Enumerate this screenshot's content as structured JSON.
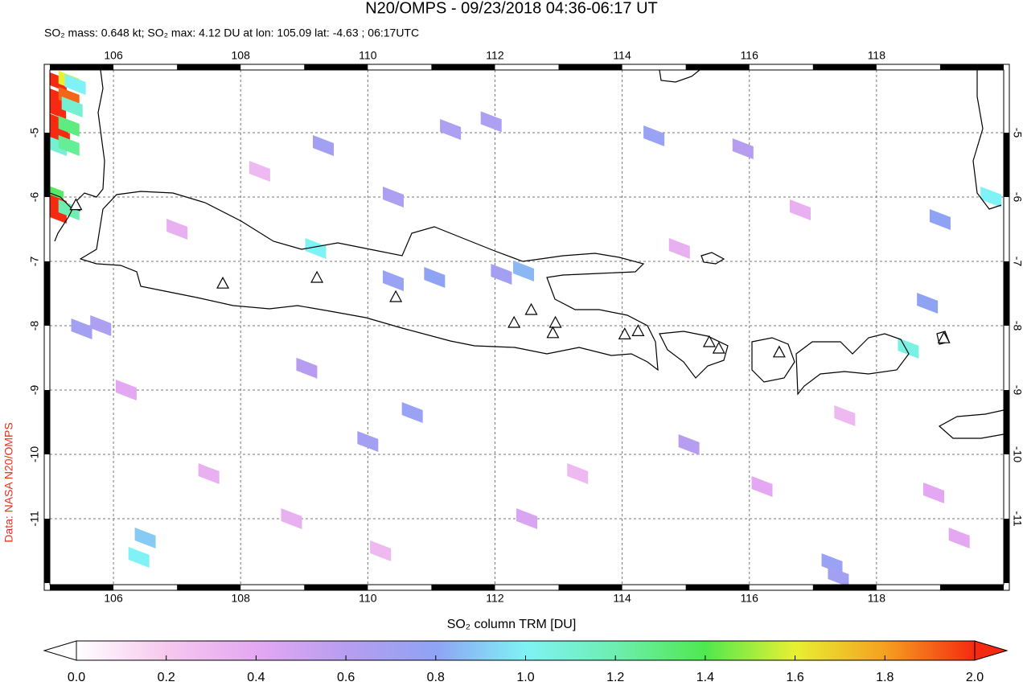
{
  "chart_data": {
    "type": "map",
    "title": "N20/OMPS - 09/23/2018 04:36-06:17 UT",
    "subtitle": "SO₂ mass: 0.648 kt; SO₂ max: 4.12 DU at lon: 105.09 lat: -4.63 ; 06:17UTC",
    "side_note": "Data: NASA N20/OMPS",
    "xlim": [
      105,
      120
    ],
    "ylim": [
      -12.025,
      -4.025
    ],
    "xticks": [
      106,
      108,
      110,
      112,
      114,
      116,
      118
    ],
    "yticks": [
      -5,
      -6,
      -7,
      -8,
      -9,
      -10,
      -11
    ],
    "grid": true,
    "volcanoes": {
      "lon": [
        105.41,
        107.72,
        109.2,
        110.44,
        112.3,
        112.57,
        112.95,
        112.91,
        114.04,
        114.25,
        115.37,
        115.52,
        116.47,
        119.06
      ],
      "lat": [
        -6.12,
        -7.34,
        -7.25,
        -7.55,
        -7.95,
        -7.75,
        -7.95,
        -8.11,
        -8.13,
        -8.08,
        -8.25,
        -8.35,
        -8.41,
        -8.19
      ]
    },
    "pixels": {
      "lon": [
        105.1,
        105.1,
        105.09,
        105.12,
        105.15,
        105.3,
        105.4,
        105.3,
        105.35,
        105.3,
        105.1,
        105.3,
        105.05,
        105.1,
        105.1,
        105.3,
        105.5,
        105.8,
        109.18,
        110.4,
        111.05,
        112.45,
        112.1,
        114.5,
        111.94,
        110.4,
        109.3,
        110.7,
        110.0,
        106.5,
        106.4,
        118.5,
        119.0,
        119.8,
        118.8,
        115.9,
        117.3,
        117.4,
        115.05,
        111.3,
        109.04,
        107.0,
        108.3,
        113.3,
        116.2,
        114.9,
        117.5,
        107.5,
        112.5,
        118.9,
        110.2,
        106.2,
        116.8,
        119.3,
        108.8
      ],
      "lat": [
        -4.2,
        -4.45,
        -4.63,
        -4.85,
        -5.05,
        -4.2,
        -4.25,
        -4.45,
        -4.6,
        -4.9,
        -5.2,
        -5.2,
        -5.95,
        -6.1,
        -6.25,
        -6.2,
        -8.05,
        -8.0,
        -6.8,
        -7.3,
        -7.25,
        -7.15,
        -7.2,
        -5.05,
        -4.83,
        -6.0,
        -5.2,
        -9.35,
        -9.8,
        -11.3,
        -11.6,
        -8.35,
        -6.35,
        -6.0,
        -7.65,
        -5.25,
        -11.7,
        -11.9,
        -9.85,
        -4.95,
        -8.66,
        -6.5,
        -5.6,
        -10.3,
        -10.5,
        -6.8,
        -9.4,
        -10.3,
        -11.0,
        -10.6,
        -11.5,
        -9.0,
        -6.2,
        -11.3,
        -11.0
      ],
      "values": [
        2.6,
        3.2,
        4.12,
        3.0,
        2.2,
        1.6,
        1.0,
        1.9,
        1.1,
        1.3,
        1.1,
        1.25,
        1.35,
        2.0,
        2.3,
        1.2,
        0.7,
        0.65,
        1.0,
        0.75,
        0.8,
        0.85,
        0.7,
        0.75,
        0.65,
        0.65,
        0.7,
        0.75,
        0.7,
        0.9,
        1.0,
        1.05,
        0.8,
        1.0,
        0.8,
        0.6,
        0.75,
        0.7,
        0.6,
        0.65,
        0.6,
        0.35,
        0.3,
        0.3,
        0.4,
        0.35,
        0.3,
        0.35,
        0.45,
        0.4,
        0.3,
        0.4,
        0.35,
        0.4,
        0.35
      ]
    },
    "colorbar": {
      "label": "SO₂ column TRM [DU]",
      "lim": [
        0,
        2
      ],
      "ticks": [
        {
          "value": 0,
          "label": "0.0"
        },
        {
          "value": 0.2,
          "label": "0.2"
        },
        {
          "value": 0.4,
          "label": "0.4"
        },
        {
          "value": 0.6,
          "label": "0.6"
        },
        {
          "value": 0.8,
          "label": "0.8"
        },
        {
          "value": 1,
          "label": "1.0"
        },
        {
          "value": 1.2,
          "label": "1.2"
        },
        {
          "value": 1.4,
          "label": "1.4"
        },
        {
          "value": 1.6,
          "label": "1.6"
        },
        {
          "value": 1.8,
          "label": "1.8"
        },
        {
          "value": 2,
          "label": "2.0"
        }
      ],
      "colors": [
        "#ffffff",
        "#f7c8ef",
        "#e4a8f2",
        "#b79df0",
        "#8fa3f5",
        "#7ff2f5",
        "#6eeeb0",
        "#4fe84f",
        "#e8f032",
        "#f5a020",
        "#f52a10"
      ]
    }
  }
}
